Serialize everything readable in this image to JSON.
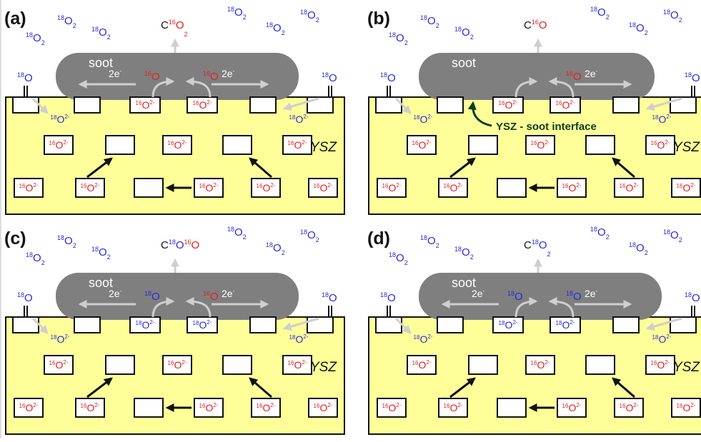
{
  "colors": {
    "blue": "#2a2ad6",
    "red": "#e02020",
    "ysz": "#ffff99",
    "soot": "#7f7f7f",
    "arrow_light": "#cfcfcf",
    "arrow_dark": "#111111",
    "interface": "#0b3d1f"
  },
  "shared": {
    "soot": "soot",
    "ysz": "YSZ",
    "electron": "2e",
    "electron_sup": "-",
    "O": "O",
    "O2_sub": "2",
    "ion_sup": "2-",
    "iso18": "18",
    "iso16": "16",
    "C": "C"
  },
  "panels": [
    {
      "label": "(a)",
      "product": [
        {
          "t": "C",
          "c": "dark"
        },
        {
          "t": "16",
          "c": "red",
          "sup": true
        },
        {
          "t": "O",
          "c": "red"
        },
        {
          "t": "2",
          "c": "red",
          "sub": true
        }
      ],
      "soot_oxygen": [
        "16",
        "16"
      ],
      "surface_ion": "16",
      "bulk_ions": "16",
      "electrons": 2,
      "interface_label": null,
      "arrow_variant": "a"
    },
    {
      "label": "(b)",
      "product": [
        {
          "t": "C",
          "c": "dark"
        },
        {
          "t": "16",
          "c": "red",
          "sup": true
        },
        {
          "t": "O",
          "c": "red"
        }
      ],
      "soot_oxygen": [
        null,
        "16"
      ],
      "surface_ion": "16",
      "bulk_ions": "16",
      "electrons": 1,
      "interface_label": "YSZ - soot interface",
      "arrow_variant": "b"
    },
    {
      "label": "(c)",
      "product": [
        {
          "t": "C",
          "c": "dark"
        },
        {
          "t": "18",
          "c": "blue",
          "sup": true
        },
        {
          "t": "O",
          "c": "blue"
        },
        {
          "t": "16",
          "c": "red",
          "sup": true
        },
        {
          "t": "O",
          "c": "red"
        }
      ],
      "soot_oxygen": [
        "18",
        "16"
      ],
      "surface_ion": "18",
      "bulk_ions": "16",
      "electrons": 2,
      "interface_label": null,
      "arrow_variant": "c"
    },
    {
      "label": "(d)",
      "product": [
        {
          "t": "C",
          "c": "dark"
        },
        {
          "t": "18",
          "c": "blue",
          "sup": true
        },
        {
          "t": "O",
          "c": "blue"
        },
        {
          "t": "2",
          "c": "blue",
          "sub": true
        }
      ],
      "soot_oxygen": [
        "18",
        "18"
      ],
      "surface_ion": "18",
      "bulk_ions": "16",
      "electrons": 2,
      "interface_label": null,
      "arrow_variant": "d"
    }
  ]
}
